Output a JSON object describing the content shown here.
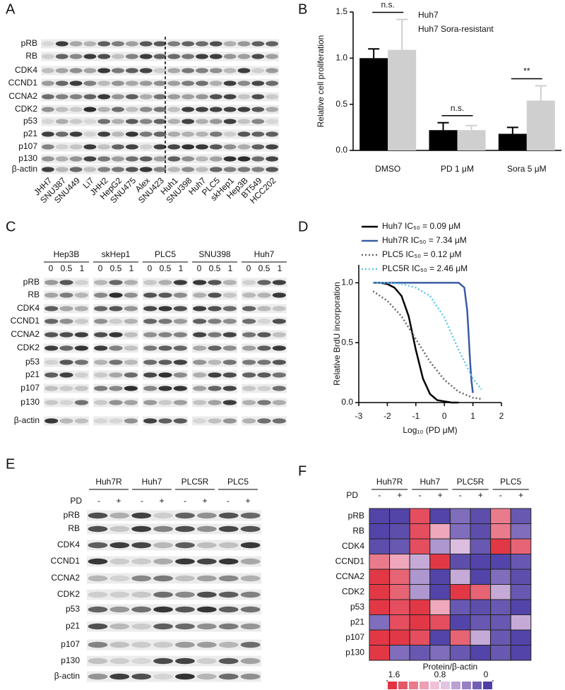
{
  "panels": {
    "A": {
      "label": "A",
      "rows": [
        "pRB",
        "RB",
        "CDK4",
        "CCND1",
        "CCNA2",
        "CDK2",
        "p53",
        "p21",
        "p107",
        "p130",
        "β-actin"
      ],
      "lanes": [
        "JHH7",
        "SNU387",
        "SNU449",
        "Li7",
        "JHH2",
        "HepG2",
        "SNU475",
        "Alex",
        "SNU423",
        "Huh1",
        "SNU398",
        "Huh7",
        "PLC5",
        "skHep1",
        "Hep3B",
        "BT549",
        "HCC202"
      ]
    },
    "C": {
      "label": "C",
      "groups": [
        "Hep3B",
        "skHep1",
        "PLC5",
        "SNU398",
        "Huh7"
      ],
      "doses": [
        "0",
        "0.5",
        "1"
      ],
      "rows": [
        "pRB",
        "RB",
        "CDK4",
        "CCND1",
        "CCNA2",
        "CDK2",
        "p53",
        "p21",
        "p107",
        "p130",
        "β-actin"
      ]
    },
    "E": {
      "label": "E",
      "groups": [
        "Huh7R",
        "Huh7",
        "PLC5R",
        "PLC5"
      ],
      "treatment_label": "PD",
      "treatments": [
        "-",
        "+",
        "-",
        "+",
        "-",
        "+",
        "-",
        "+"
      ],
      "rows": [
        "pRB",
        "RB",
        "CDK4",
        "CCND1",
        "CCNA2",
        "CDK2",
        "p53",
        "p21",
        "p107",
        "p130",
        "β-actin"
      ]
    }
  },
  "chart_data": [
    {
      "type": "bar",
      "panel": "B",
      "categories": [
        "DMSO",
        "PD 1 μM",
        "Sora 5 μM"
      ],
      "series": [
        {
          "name": "Huh7",
          "color": "#000000",
          "values": [
            1.0,
            0.22,
            0.18
          ],
          "errors": [
            0.1,
            0.08,
            0.07
          ]
        },
        {
          "name": "Huh7 Sora-resistant",
          "color": "#cfcfcf",
          "values": [
            1.09,
            0.22,
            0.54
          ],
          "errors": [
            0.33,
            0.05,
            0.16
          ]
        }
      ],
      "ylabel": "Relative cell proliferation",
      "ylim": [
        0,
        1.5
      ],
      "yticks": [
        {
          "value": 0,
          "label": "0.0"
        },
        0.5,
        {
          "value": 1,
          "label": "1.0"
        },
        1.5
      ],
      "annotations": [
        "n.s.",
        "n.s.",
        "**"
      ]
    },
    {
      "type": "line",
      "panel": "D",
      "series": [
        {
          "name": "Huh7 IC₅₀ = 0.09 μM",
          "color": "#000000",
          "dotted": false,
          "x": [
            -2.5,
            -2.25,
            -2,
            -1.75,
            -1.5,
            -1.25,
            -1,
            -0.75,
            -0.5,
            -0.25,
            0,
            0.25,
            0.5
          ],
          "values": [
            1.0,
            1.0,
            0.99,
            0.96,
            0.89,
            0.72,
            0.44,
            0.2,
            0.07,
            0.02,
            0.01,
            0.0,
            0.0
          ]
        },
        {
          "name": "Huh7R IC₅₀ = 7.34 μM",
          "color": "#3b5ba5",
          "dotted": false,
          "x": [
            -2.5,
            -2,
            -1,
            0,
            0.5,
            0.7,
            0.8,
            0.85,
            0.9,
            0.95,
            1.0
          ],
          "values": [
            1.0,
            1.0,
            1.0,
            1.0,
            1.0,
            0.96,
            0.77,
            0.57,
            0.35,
            0.18,
            0.08
          ]
        },
        {
          "name": "PLC5 IC₅₀ = 0.12 μM",
          "color": "#666666",
          "dotted": true,
          "x": [
            -2.5,
            -2,
            -1.5,
            -1,
            -0.5,
            0,
            0.5,
            1,
            1.3
          ],
          "values": [
            0.93,
            0.85,
            0.72,
            0.53,
            0.34,
            0.19,
            0.09,
            0.04,
            0.03
          ]
        },
        {
          "name": "PLC5R IC₅₀ = 2.46 μM",
          "color": "#5bc8e8",
          "dotted": true,
          "x": [
            -2.5,
            -2,
            -1.5,
            -1,
            -0.5,
            0,
            0.5,
            1,
            1.3
          ],
          "values": [
            1.0,
            1.0,
            0.99,
            0.96,
            0.89,
            0.71,
            0.44,
            0.2,
            0.11
          ]
        }
      ],
      "xlabel": "Log₁₀ (PD μM)",
      "ylabel": "Relative BrdU incorporation",
      "xlim": [
        -3,
        2
      ],
      "xticks": [
        -3,
        -2,
        -1,
        0,
        1,
        2
      ],
      "ylim": [
        0,
        1.15
      ],
      "yticks": [
        {
          "value": 0,
          "label": "0.0"
        },
        0.5,
        {
          "value": 1,
          "label": "1.0"
        }
      ]
    },
    {
      "type": "heatmap",
      "panel": "F",
      "groups": [
        "Huh7R",
        "Huh7",
        "PLC5R",
        "PLC5"
      ],
      "treatment_label": "PD",
      "treatments": [
        "-",
        "+",
        "-",
        "+",
        "-",
        "+",
        "-",
        "+"
      ],
      "rows": [
        "pRB",
        "RB",
        "CDK4",
        "CCND1",
        "CCNA2",
        "CDK2",
        "p53",
        "p21",
        "p107",
        "p130"
      ],
      "values": [
        [
          0.1,
          0.1,
          1.4,
          0.1,
          0.3,
          0.15,
          1.2,
          0.2
        ],
        [
          0.1,
          0.15,
          1.4,
          1.0,
          0.3,
          0.15,
          1.2,
          0.3
        ],
        [
          0.15,
          0.2,
          1.4,
          0.5,
          0.7,
          0.2,
          1.5,
          1.3
        ],
        [
          1.2,
          1.0,
          0.6,
          1.5,
          0.15,
          0.1,
          0.1,
          0.2
        ],
        [
          1.5,
          1.3,
          0.5,
          0.1,
          0.6,
          0.1,
          0.3,
          0.15
        ],
        [
          1.5,
          1.3,
          0.5,
          0.1,
          1.5,
          1.3,
          0.6,
          0.2
        ],
        [
          1.5,
          1.4,
          1.5,
          1.0,
          0.2,
          0.15,
          0.2,
          0.1
        ],
        [
          0.3,
          1.4,
          1.5,
          1.4,
          0.1,
          0.2,
          0.2,
          0.6
        ],
        [
          1.5,
          1.5,
          1.4,
          0.1,
          1.3,
          0.6,
          0.2,
          0.1
        ],
        [
          1.5,
          0.3,
          0.2,
          0.3,
          0.2,
          0.1,
          0.2,
          0.1
        ]
      ],
      "colorbar_label": "Protein/β-actin",
      "clim": [
        0,
        1.6
      ],
      "cticks": [
        1.6,
        0.8,
        0
      ],
      "colors": [
        "#3b2f9e",
        "#f3d3ea",
        "#e0222f"
      ]
    }
  ]
}
